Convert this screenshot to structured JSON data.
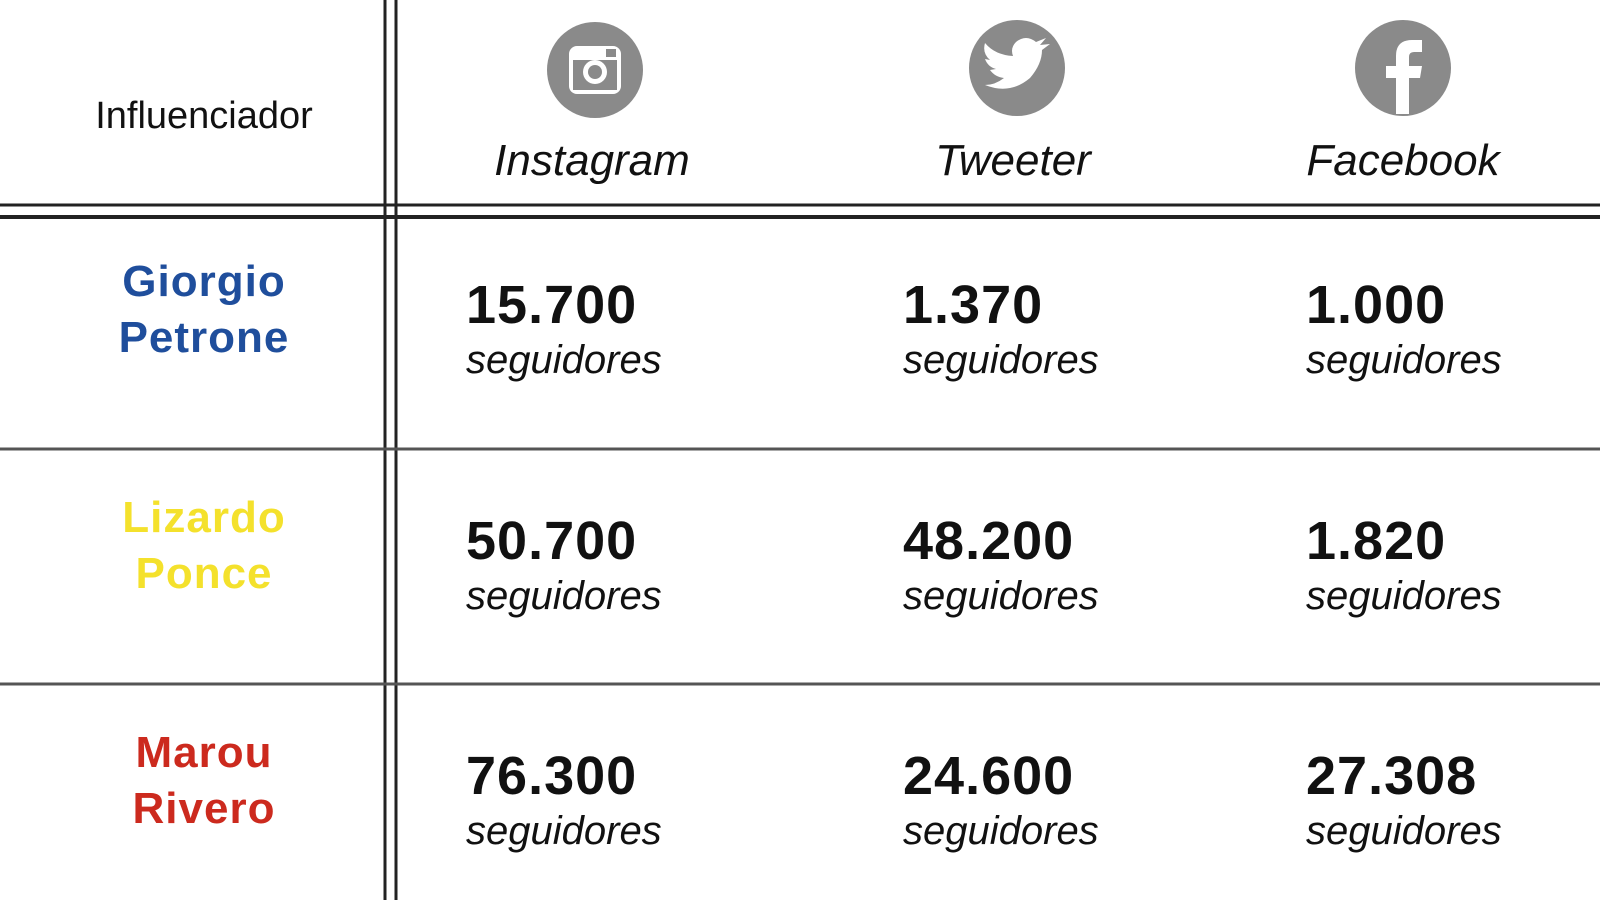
{
  "header": {
    "title": "Influenciador",
    "columns": [
      "Instagram",
      "Tweeter",
      "Facebook"
    ]
  },
  "rows": [
    {
      "name": "Giorgio Petrone",
      "color": "#1f4e9c",
      "cells": [
        {
          "value": "15.700",
          "unit": "seguidores"
        },
        {
          "value": "1.370",
          "unit": "seguidores"
        },
        {
          "value": "1.000",
          "unit": "seguidores"
        }
      ]
    },
    {
      "name": "Lizardo Ponce",
      "color": "#f4e12c",
      "cells": [
        {
          "value": "50.700",
          "unit": "seguidores"
        },
        {
          "value": "48.200",
          "unit": "seguidores"
        },
        {
          "value": "1.820",
          "unit": "seguidores"
        }
      ]
    },
    {
      "name": "Marou Rivero",
      "color": "#cc2a1e",
      "cells": [
        {
          "value": "76.300",
          "unit": "seguidores"
        },
        {
          "value": "24.600",
          "unit": "seguidores"
        },
        {
          "value": "27.308",
          "unit": "seguidores"
        }
      ]
    }
  ]
}
